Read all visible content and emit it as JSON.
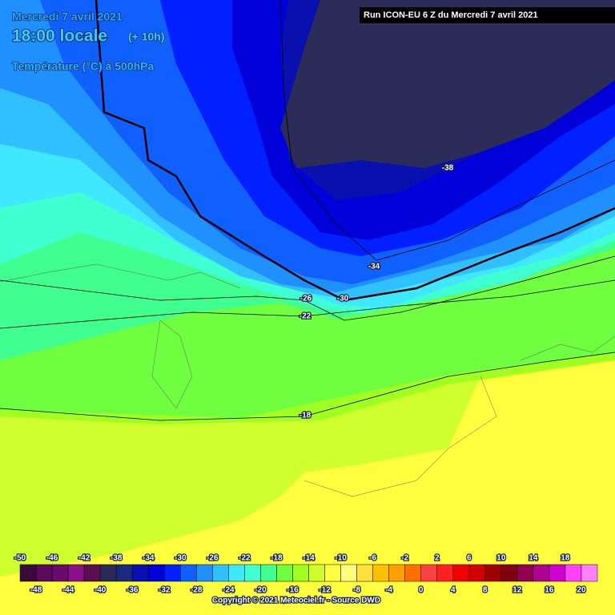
{
  "header": {
    "date": "Mercredi 7 avril 2021",
    "time": "18:00 locale",
    "offset": "(+ 10h)",
    "field": "Température (°C) à 500hPa",
    "run": "Run ICON-EU 6 Z du Mercredi 7 avril 2021"
  },
  "contour_labels": [
    -38,
    -34,
    -30,
    -26,
    -22,
    -18
  ],
  "colorbar": {
    "top_labels": [
      -50,
      -46,
      -42,
      -38,
      -34,
      -30,
      -26,
      -22,
      -18,
      -14,
      -10,
      -6,
      -2,
      2,
      6,
      10,
      14,
      18
    ],
    "bottom_labels": [
      -48,
      -44,
      -40,
      -36,
      -32,
      -28,
      -24,
      -20,
      -16,
      -12,
      -8,
      -4,
      0,
      4,
      8,
      12,
      16,
      20
    ],
    "colors": [
      "#3a0a3a",
      "#5a0a5a",
      "#6a0a6a",
      "#8a108a",
      "#5a1050",
      "#2a2a5a",
      "#1a2a80",
      "#0a10b0",
      "#0000d8",
      "#0020ff",
      "#1060ff",
      "#2090ff",
      "#30c0ff",
      "#40e8ff",
      "#40ffd0",
      "#40ff90",
      "#70ff40",
      "#a0ff20",
      "#d0ff30",
      "#ffff40",
      "#ffff80",
      "#ffe040",
      "#ffc000",
      "#ffa000",
      "#ff7000",
      "#ff4040",
      "#ff2020",
      "#f00000",
      "#d00000",
      "#a00000",
      "#800010",
      "#900050",
      "#b00090",
      "#d000d0",
      "#ff40ff",
      "#ff80ff"
    ]
  },
  "copyright": "Copyright © 2021 Meteociel.fr - Source DWD"
}
